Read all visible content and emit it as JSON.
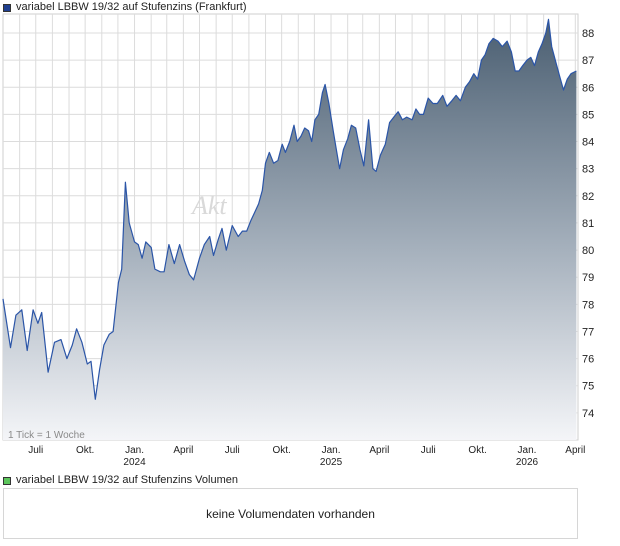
{
  "legend": {
    "series_label": "variabel LBBW 19/32 auf Stufenzins (Frankfurt)",
    "series_color": "#1f3f8f",
    "volume_label": "variabel LBBW 19/32 auf Stufenzins Volumen",
    "volume_color": "#5cc65c"
  },
  "watermark": "Akt",
  "tick_info": "1 Tick = 1 Woche",
  "volume_panel": {
    "message": "keine Volumendaten vorhanden"
  },
  "colors": {
    "line": "#2b55a7",
    "fill_top": "#4a5e71",
    "fill_bottom": "#f4f5f8",
    "grid": "#dcdcdc"
  },
  "chart_data": {
    "type": "area",
    "ylim": [
      73,
      88.7
    ],
    "y_ticks": [
      74,
      75,
      76,
      77,
      78,
      79,
      80,
      81,
      82,
      83,
      84,
      85,
      86,
      87,
      88
    ],
    "x_ticks": [
      {
        "label": "Juli",
        "sub": "",
        "date": "2023-07-01"
      },
      {
        "label": "Okt.",
        "sub": "",
        "date": "2023-10-01"
      },
      {
        "label": "Jan.",
        "sub": "2024",
        "date": "2024-01-01"
      },
      {
        "label": "April",
        "sub": "",
        "date": "2024-04-01"
      },
      {
        "label": "Juli",
        "sub": "",
        "date": "2024-07-01"
      },
      {
        "label": "Okt.",
        "sub": "",
        "date": "2024-10-01"
      },
      {
        "label": "Jan.",
        "sub": "2025",
        "date": "2025-01-01"
      },
      {
        "label": "April",
        "sub": "",
        "date": "2025-04-01"
      },
      {
        "label": "Juli",
        "sub": "",
        "date": "2025-07-01"
      },
      {
        "label": "Okt.",
        "sub": "",
        "date": "2025-10-01"
      },
      {
        "label": "Jan.",
        "sub": "2026",
        "date": "2026-01-01"
      },
      {
        "label": "April",
        "sub": "",
        "date": "2026-04-01"
      }
    ],
    "x_range": [
      "2023-05-01",
      "2026-04-06"
    ],
    "grid": true,
    "series": [
      {
        "name": "variabel LBBW 19/32 auf Stufenzins (Frankfurt)",
        "points": [
          [
            "2023-05-01",
            78.2
          ],
          [
            "2023-05-15",
            76.4
          ],
          [
            "2023-05-25",
            77.6
          ],
          [
            "2023-06-05",
            77.8
          ],
          [
            "2023-06-15",
            76.3
          ],
          [
            "2023-06-26",
            77.8
          ],
          [
            "2023-07-05",
            77.3
          ],
          [
            "2023-07-12",
            77.7
          ],
          [
            "2023-07-24",
            75.5
          ],
          [
            "2023-08-05",
            76.6
          ],
          [
            "2023-08-17",
            76.7
          ],
          [
            "2023-08-28",
            76.0
          ],
          [
            "2023-09-07",
            76.5
          ],
          [
            "2023-09-15",
            77.1
          ],
          [
            "2023-09-25",
            76.6
          ],
          [
            "2023-10-05",
            75.8
          ],
          [
            "2023-10-12",
            75.9
          ],
          [
            "2023-10-20",
            74.5
          ],
          [
            "2023-10-28",
            75.6
          ],
          [
            "2023-11-05",
            76.5
          ],
          [
            "2023-11-15",
            76.9
          ],
          [
            "2023-11-22",
            77.0
          ],
          [
            "2023-12-02",
            78.8
          ],
          [
            "2023-12-08",
            79.3
          ],
          [
            "2023-12-15",
            82.5
          ],
          [
            "2023-12-22",
            81.0
          ],
          [
            "2024-01-01",
            80.3
          ],
          [
            "2024-01-08",
            80.2
          ],
          [
            "2024-01-15",
            79.7
          ],
          [
            "2024-01-22",
            80.3
          ],
          [
            "2024-02-01",
            80.1
          ],
          [
            "2024-02-08",
            79.3
          ],
          [
            "2024-02-18",
            79.2
          ],
          [
            "2024-02-25",
            79.2
          ],
          [
            "2024-03-05",
            80.2
          ],
          [
            "2024-03-15",
            79.5
          ],
          [
            "2024-03-25",
            80.2
          ],
          [
            "2024-04-03",
            79.6
          ],
          [
            "2024-04-12",
            79.1
          ],
          [
            "2024-04-20",
            78.9
          ],
          [
            "2024-05-01",
            79.7
          ],
          [
            "2024-05-10",
            80.2
          ],
          [
            "2024-05-20",
            80.5
          ],
          [
            "2024-05-27",
            79.8
          ],
          [
            "2024-06-05",
            80.4
          ],
          [
            "2024-06-12",
            80.8
          ],
          [
            "2024-06-20",
            80.0
          ],
          [
            "2024-07-01",
            80.9
          ],
          [
            "2024-07-12",
            80.5
          ],
          [
            "2024-07-20",
            80.7
          ],
          [
            "2024-07-28",
            80.7
          ],
          [
            "2024-08-05",
            81.1
          ],
          [
            "2024-08-12",
            81.4
          ],
          [
            "2024-08-19",
            81.7
          ],
          [
            "2024-08-26",
            82.2
          ],
          [
            "2024-09-01",
            83.2
          ],
          [
            "2024-09-08",
            83.6
          ],
          [
            "2024-09-16",
            83.2
          ],
          [
            "2024-09-24",
            83.3
          ],
          [
            "2024-10-02",
            83.9
          ],
          [
            "2024-10-08",
            83.6
          ],
          [
            "2024-10-16",
            84.0
          ],
          [
            "2024-10-24",
            84.6
          ],
          [
            "2024-10-30",
            84.0
          ],
          [
            "2024-11-06",
            84.2
          ],
          [
            "2024-11-13",
            84.5
          ],
          [
            "2024-11-20",
            84.4
          ],
          [
            "2024-11-26",
            84.0
          ],
          [
            "2024-12-02",
            84.8
          ],
          [
            "2024-12-09",
            85.0
          ],
          [
            "2024-12-16",
            85.8
          ],
          [
            "2024-12-21",
            86.1
          ],
          [
            "2024-12-28",
            85.4
          ],
          [
            "2025-01-05",
            84.4
          ],
          [
            "2025-01-10",
            83.8
          ],
          [
            "2025-01-17",
            83.0
          ],
          [
            "2025-01-24",
            83.7
          ],
          [
            "2025-02-01",
            84.1
          ],
          [
            "2025-02-08",
            84.6
          ],
          [
            "2025-02-16",
            84.5
          ],
          [
            "2025-02-24",
            83.7
          ],
          [
            "2025-03-03",
            83.1
          ],
          [
            "2025-03-12",
            84.8
          ],
          [
            "2025-03-20",
            83.0
          ],
          [
            "2025-03-26",
            82.9
          ],
          [
            "2025-04-03",
            83.5
          ],
          [
            "2025-04-12",
            83.9
          ],
          [
            "2025-04-20",
            84.7
          ],
          [
            "2025-04-28",
            84.9
          ],
          [
            "2025-05-06",
            85.1
          ],
          [
            "2025-05-14",
            84.8
          ],
          [
            "2025-05-22",
            84.9
          ],
          [
            "2025-06-01",
            84.8
          ],
          [
            "2025-06-08",
            85.2
          ],
          [
            "2025-06-15",
            85.0
          ],
          [
            "2025-06-22",
            85.0
          ],
          [
            "2025-07-01",
            85.6
          ],
          [
            "2025-07-10",
            85.4
          ],
          [
            "2025-07-18",
            85.4
          ],
          [
            "2025-07-28",
            85.7
          ],
          [
            "2025-08-05",
            85.3
          ],
          [
            "2025-08-14",
            85.5
          ],
          [
            "2025-08-22",
            85.7
          ],
          [
            "2025-08-30",
            85.5
          ],
          [
            "2025-09-08",
            86.0
          ],
          [
            "2025-09-16",
            86.2
          ],
          [
            "2025-09-24",
            86.5
          ],
          [
            "2025-10-01",
            86.3
          ],
          [
            "2025-10-08",
            87.0
          ],
          [
            "2025-10-15",
            87.2
          ],
          [
            "2025-10-22",
            87.6
          ],
          [
            "2025-10-30",
            87.8
          ],
          [
            "2025-11-08",
            87.7
          ],
          [
            "2025-11-16",
            87.5
          ],
          [
            "2025-11-25",
            87.7
          ],
          [
            "2025-12-03",
            87.3
          ],
          [
            "2025-12-10",
            86.6
          ],
          [
            "2025-12-17",
            86.6
          ],
          [
            "2025-12-24",
            86.8
          ],
          [
            "2026-01-01",
            87.0
          ],
          [
            "2026-01-08",
            87.1
          ],
          [
            "2026-01-15",
            86.8
          ],
          [
            "2026-01-22",
            87.3
          ],
          [
            "2026-01-29",
            87.6
          ],
          [
            "2026-02-05",
            88.0
          ],
          [
            "2026-02-10",
            88.5
          ],
          [
            "2026-02-16",
            87.5
          ],
          [
            "2026-02-24",
            86.9
          ],
          [
            "2026-03-03",
            86.4
          ],
          [
            "2026-03-10",
            85.9
          ],
          [
            "2026-03-17",
            86.3
          ],
          [
            "2026-03-24",
            86.5
          ],
          [
            "2026-04-03",
            86.6
          ]
        ]
      }
    ]
  }
}
